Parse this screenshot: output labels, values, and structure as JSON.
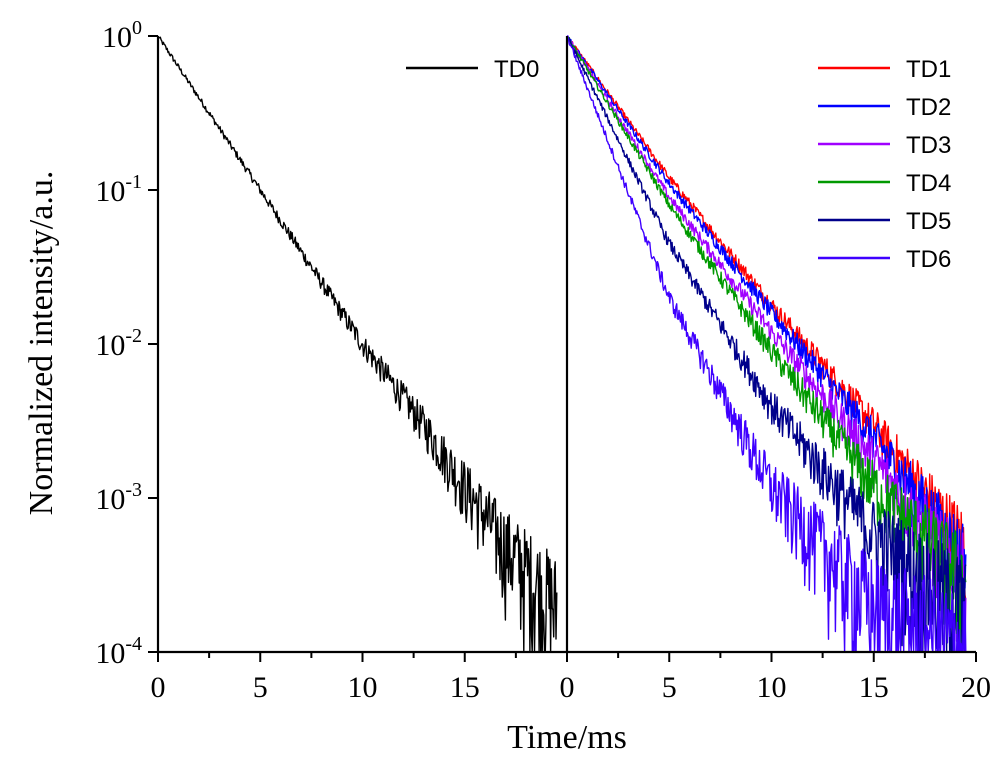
{
  "chart_data": [
    {
      "panel": "left",
      "type": "line",
      "x_ticks": [
        0,
        5,
        10,
        15
      ],
      "xlim": [
        0,
        20
      ],
      "y_scale": "log",
      "ylim": [
        0.0001,
        1
      ],
      "y_ticks": [
        {
          "value": 1,
          "base": "10",
          "exp": "0"
        },
        {
          "value": 0.1,
          "base": "10",
          "exp": "-1"
        },
        {
          "value": 0.01,
          "base": "10",
          "exp": "-2"
        },
        {
          "value": 0.001,
          "base": "10",
          "exp": "-3"
        },
        {
          "value": 0.0001,
          "base": "10",
          "exp": "-4"
        }
      ],
      "series": [
        {
          "name": "TD0",
          "color": "#000000",
          "x": [
            0,
            5,
            10,
            13,
            15,
            17,
            19.5
          ],
          "y": [
            1,
            0.1,
            0.01,
            0.003,
            0.0012,
            0.0005,
            0.0002
          ]
        }
      ]
    },
    {
      "panel": "right",
      "type": "line",
      "x_ticks": [
        0,
        5,
        10,
        15,
        20
      ],
      "xlim": [
        0,
        20
      ],
      "y_scale": "log",
      "ylim": [
        0.0001,
        1
      ],
      "series": [
        {
          "name": "TD1",
          "color": "#ff0000",
          "x": [
            0,
            5,
            10,
            15,
            19.5
          ],
          "y": [
            1,
            0.12,
            0.018,
            0.003,
            0.0005
          ]
        },
        {
          "name": "TD2",
          "color": "#0000ff",
          "x": [
            0,
            5,
            10,
            15,
            19.5
          ],
          "y": [
            1,
            0.11,
            0.016,
            0.0025,
            0.0004
          ]
        },
        {
          "name": "TD3",
          "color": "#a000ff",
          "x": [
            0,
            5,
            10,
            15,
            19.5
          ],
          "y": [
            1,
            0.09,
            0.012,
            0.0018,
            0.0003
          ]
        },
        {
          "name": "TD4",
          "color": "#009900",
          "x": [
            0,
            5,
            10,
            15,
            19.5
          ],
          "y": [
            1,
            0.08,
            0.009,
            0.0012,
            0.0003
          ]
        },
        {
          "name": "TD5",
          "color": "#00008b",
          "x": [
            0,
            5,
            10,
            15,
            19.5
          ],
          "y": [
            1,
            0.045,
            0.004,
            0.0006,
            0.0002
          ]
        },
        {
          "name": "TD6",
          "color": "#3f00ff",
          "x": [
            0,
            5,
            10,
            15,
            19.5
          ],
          "y": [
            1,
            0.02,
            0.0012,
            0.0002,
            0.0001
          ]
        }
      ]
    }
  ],
  "axes": {
    "xlabel": "Time/ms",
    "ylabel": "Normalized intensity/a.u."
  }
}
